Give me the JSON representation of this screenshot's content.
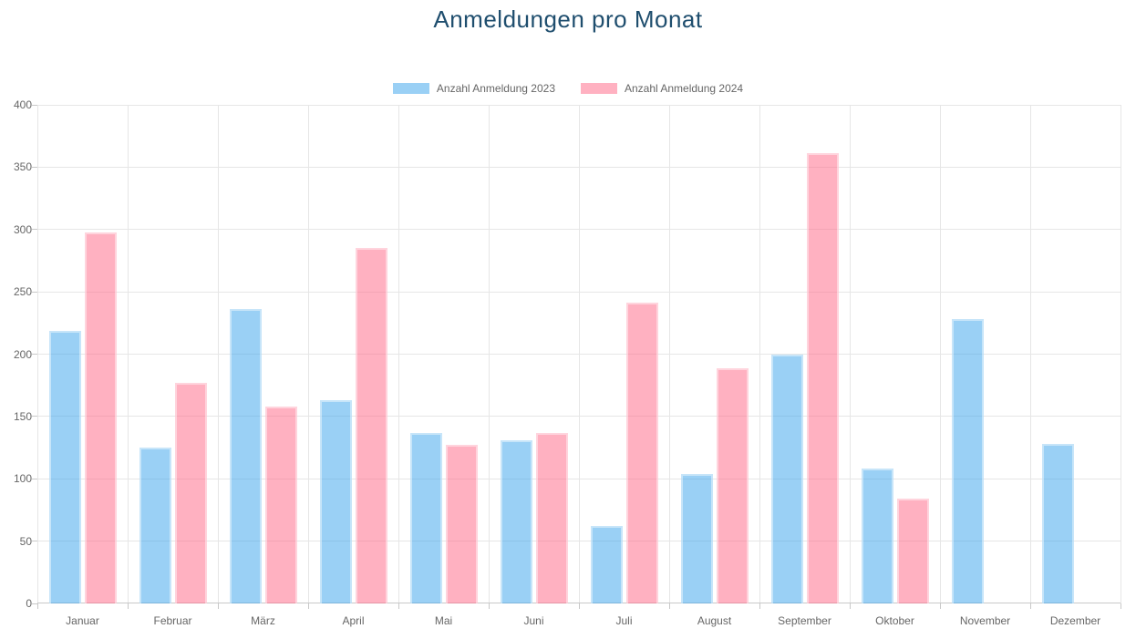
{
  "title": "Anmeldungen pro Monat",
  "colors": {
    "title_text": "#1F4E6E",
    "axis_text": "#666666",
    "gridline": "#E6E6E6",
    "axis_line": "#C8C8C8",
    "series_2023_swatch": "#9AD0F5",
    "series_2023_fill": "rgba(54,162,235,0.5)",
    "series_2024_swatch": "#FFB1C1",
    "series_2024_fill": "rgba(255,99,132,0.5)"
  },
  "chart_data": {
    "type": "bar",
    "title": "Anmeldungen pro Monat",
    "categories": [
      "Januar",
      "Februar",
      "März",
      "April",
      "Mai",
      "Juni",
      "Juli",
      "August",
      "September",
      "Oktober",
      "November",
      "Dezember"
    ],
    "series": [
      {
        "name": "Anzahl Anmeldung 2023",
        "swatch": "#9AD0F5",
        "fill": "rgba(54,162,235,0.5)",
        "values": [
          219,
          125,
          236,
          163,
          137,
          131,
          62,
          104,
          200,
          108,
          228,
          128
        ]
      },
      {
        "name": "Anzahl Anmeldung 2024",
        "swatch": "#FFB1C1",
        "fill": "rgba(255,99,132,0.5)",
        "values": [
          298,
          177,
          158,
          285,
          127,
          137,
          241,
          189,
          361,
          84,
          0,
          0
        ]
      }
    ],
    "xlabel": "",
    "ylabel": "",
    "ylim": [
      0,
      400
    ],
    "ytick_step": 50,
    "grid": true,
    "legend_position": "top"
  }
}
